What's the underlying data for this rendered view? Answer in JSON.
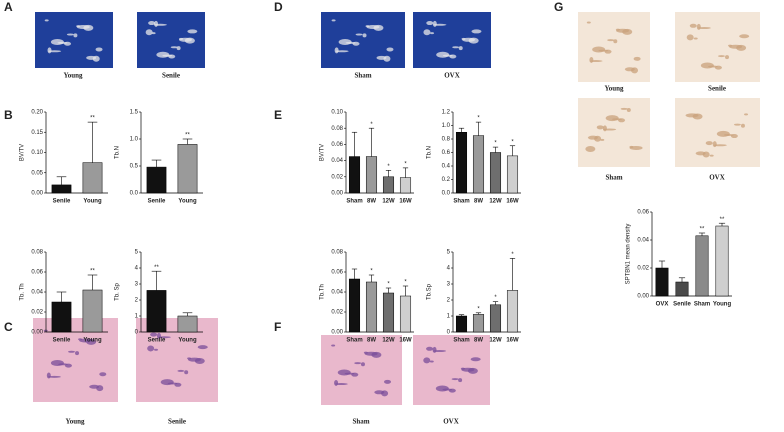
{
  "figure": {
    "panels": [
      {
        "letter": "A",
        "captions": [
          "Young",
          "Senile"
        ]
      },
      {
        "letter": "B"
      },
      {
        "letter": "C",
        "captions": [
          "Young",
          "Senile"
        ]
      },
      {
        "letter": "D",
        "captions": [
          "Sham",
          "OVX"
        ]
      },
      {
        "letter": "E"
      },
      {
        "letter": "F",
        "captions": [
          "Sham",
          "OVX"
        ]
      },
      {
        "letter": "G",
        "captions": [
          "Young",
          "Senile",
          "Sham",
          "OVX"
        ]
      }
    ]
  },
  "chart_data": [
    {
      "type": "bar",
      "ylabel": "BV/TV",
      "categories": [
        "Senile",
        "Young"
      ],
      "values": [
        0.02,
        0.075
      ],
      "errors": [
        0.02,
        0.1
      ],
      "significance": [
        null,
        "**"
      ],
      "colors": [
        "#111111",
        "#9a9a9a"
      ],
      "ylim": [
        0,
        0.2
      ],
      "yticks": [
        {
          "value": 0,
          "label": "0.00"
        },
        {
          "value": 0.05,
          "label": "0.05"
        },
        {
          "value": 0.1,
          "label": "0.10"
        },
        {
          "value": 0.15,
          "label": "0.15"
        },
        {
          "value": 0.2,
          "label": "0.20"
        }
      ]
    },
    {
      "type": "bar",
      "ylabel": "Tb.N",
      "categories": [
        "Senile",
        "Young"
      ],
      "values": [
        0.48,
        0.9
      ],
      "errors": [
        0.13,
        0.1
      ],
      "significance": [
        null,
        "**"
      ],
      "colors": [
        "#111111",
        "#9a9a9a"
      ],
      "ylim": [
        0,
        1.5
      ],
      "yticks": [
        {
          "value": 0,
          "label": "0.0"
        },
        0.5,
        {
          "value": 1,
          "label": "1.0"
        },
        1.5
      ]
    },
    {
      "type": "bar",
      "ylabel": "Tb. Th",
      "categories": [
        "Senile",
        "Young"
      ],
      "values": [
        0.03,
        0.042
      ],
      "errors": [
        0.01,
        0.015
      ],
      "significance": [
        null,
        "**"
      ],
      "colors": [
        "#111111",
        "#9a9a9a"
      ],
      "ylim": [
        0,
        0.08
      ],
      "yticks": [
        {
          "value": 0,
          "label": "0.00"
        },
        0.02,
        0.04,
        0.06,
        0.08
      ]
    },
    {
      "type": "bar",
      "ylabel": "Tb. Sp",
      "categories": [
        "Senile",
        "Young"
      ],
      "values": [
        2.6,
        1.0
      ],
      "errors": [
        1.2,
        0.2
      ],
      "significance": [
        "**",
        null
      ],
      "colors": [
        "#111111",
        "#9a9a9a"
      ],
      "ylim": [
        0,
        5
      ],
      "yticks": [
        0,
        1,
        2,
        3,
        4,
        5
      ]
    },
    {
      "type": "bar",
      "ylabel": "BV/TV",
      "categories": [
        "Sham",
        "8W",
        "12W",
        "16W"
      ],
      "values": [
        0.045,
        0.045,
        0.02,
        0.019
      ],
      "errors": [
        0.03,
        0.035,
        0.008,
        0.012
      ],
      "significance": [
        null,
        "*",
        "*",
        "*"
      ],
      "colors": [
        "#111111",
        "#9a9a9a",
        "#6e6e6e",
        "#cfcfcf"
      ],
      "ylim": [
        0,
        0.1
      ],
      "yticks": [
        {
          "value": 0,
          "label": "0.00"
        },
        0.02,
        0.04,
        0.06,
        0.08,
        {
          "value": 0.1,
          "label": "0.10"
        }
      ]
    },
    {
      "type": "bar",
      "ylabel": "Tb.N",
      "categories": [
        "Sham",
        "8W",
        "12W",
        "16W"
      ],
      "values": [
        0.9,
        0.85,
        0.6,
        0.55
      ],
      "errors": [
        0.06,
        0.2,
        0.08,
        0.15
      ],
      "significance": [
        null,
        "*",
        "*",
        "*"
      ],
      "colors": [
        "#111111",
        "#9a9a9a",
        "#6e6e6e",
        "#cfcfcf"
      ],
      "ylim": [
        0,
        1.2
      ],
      "yticks": [
        {
          "value": 0,
          "label": "0.0"
        },
        0.2,
        0.4,
        0.6,
        0.8,
        {
          "value": 1,
          "label": "1.0"
        },
        1.2
      ]
    },
    {
      "type": "bar",
      "ylabel": "Tb.Th",
      "categories": [
        "Sham",
        "8W",
        "12W",
        "16W"
      ],
      "values": [
        0.053,
        0.05,
        0.039,
        0.036
      ],
      "errors": [
        0.01,
        0.007,
        0.005,
        0.01
      ],
      "significance": [
        null,
        "*",
        "*",
        "*"
      ],
      "colors": [
        "#111111",
        "#9a9a9a",
        "#6e6e6e",
        "#cfcfcf"
      ],
      "ylim": [
        0,
        0.08
      ],
      "yticks": [
        {
          "value": 0,
          "label": "0.00"
        },
        0.02,
        0.04,
        0.06,
        0.08
      ]
    },
    {
      "type": "bar",
      "ylabel": "Tb.Sp",
      "categories": [
        "Sham",
        "8W",
        "12W",
        "16W"
      ],
      "values": [
        1.0,
        1.1,
        1.7,
        2.6
      ],
      "errors": [
        0.08,
        0.1,
        0.2,
        2.0
      ],
      "significance": [
        null,
        "*",
        "*",
        "*"
      ],
      "colors": [
        "#111111",
        "#9a9a9a",
        "#6e6e6e",
        "#cfcfcf"
      ],
      "ylim": [
        0,
        5
      ],
      "yticks": [
        0,
        1,
        2,
        3,
        4,
        5
      ]
    },
    {
      "type": "bar",
      "ylabel": "SPTBN1 mean density",
      "categories": [
        "OVX",
        "Senile",
        "Sham",
        "Young"
      ],
      "values": [
        0.02,
        0.01,
        0.043,
        0.05
      ],
      "errors": [
        0.005,
        0.003,
        0.002,
        0.002
      ],
      "significance": [
        null,
        null,
        "**",
        "**"
      ],
      "colors": [
        "#111111",
        "#4a4a4a",
        "#8a8a8a",
        "#cfcfcf"
      ],
      "ylim": [
        0,
        0.06
      ],
      "yticks": [
        {
          "value": 0,
          "label": "0.00"
        },
        0.02,
        0.04,
        0.06
      ]
    }
  ]
}
